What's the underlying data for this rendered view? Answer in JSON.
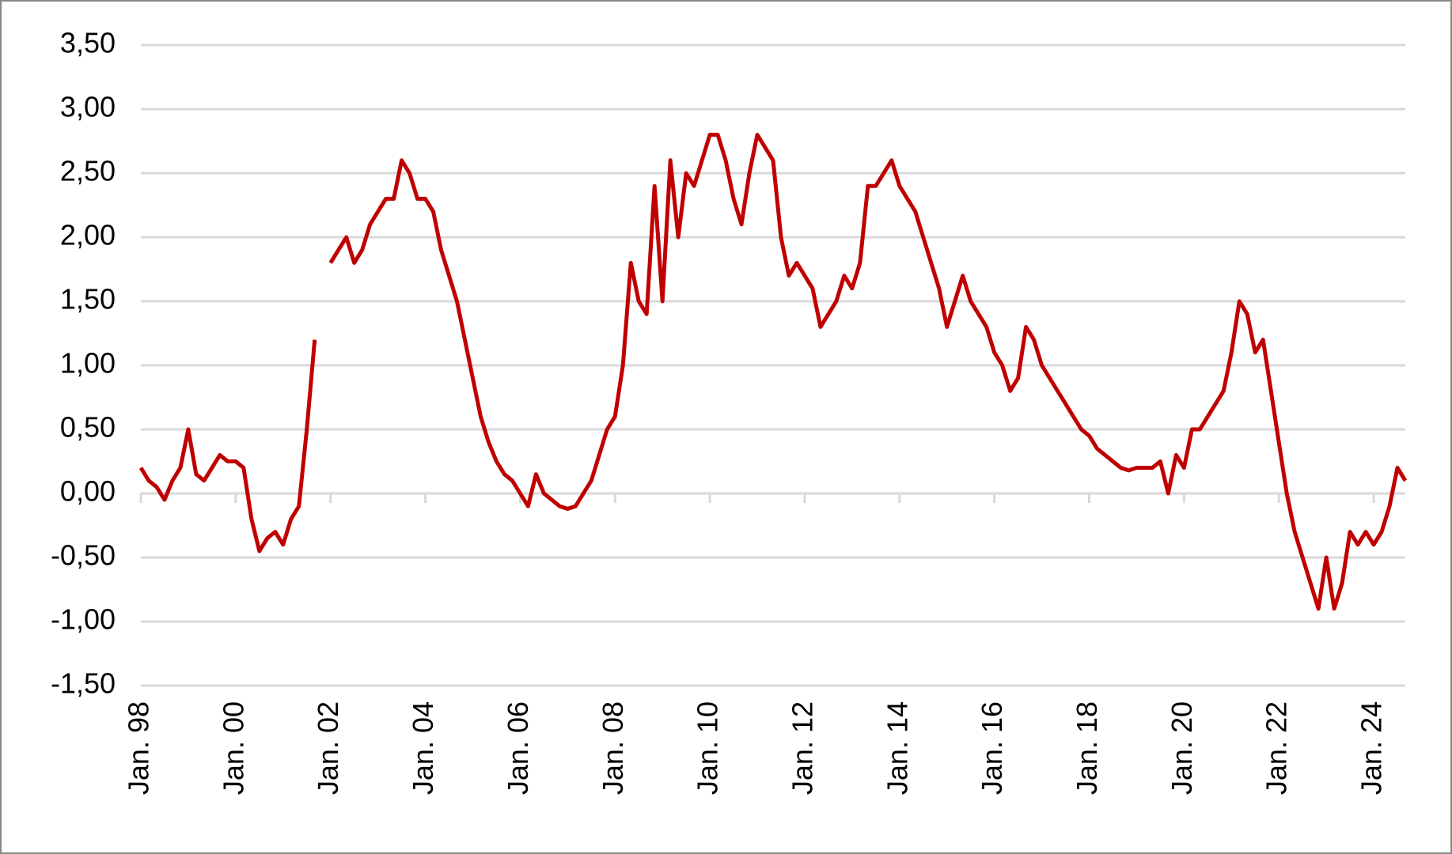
{
  "chart_data": {
    "type": "line",
    "x": [
      "1998-01",
      "1998-03",
      "1998-05",
      "1998-07",
      "1998-09",
      "1998-11",
      "1999-01",
      "1999-03",
      "1999-05",
      "1999-07",
      "1999-09",
      "1999-11",
      "2000-01",
      "2000-03",
      "2000-05",
      "2000-07",
      "2000-09",
      "2000-11",
      "2001-01",
      "2001-03",
      "2001-05",
      "2001-07",
      "2001-09",
      "2001-11",
      "2002-01",
      "2002-03",
      "2002-05",
      "2002-07",
      "2002-09",
      "2002-11",
      "2003-01",
      "2003-03",
      "2003-05",
      "2003-07",
      "2003-09",
      "2003-11",
      "2004-01",
      "2004-03",
      "2004-05",
      "2004-07",
      "2004-09",
      "2004-11",
      "2005-01",
      "2005-03",
      "2005-05",
      "2005-07",
      "2005-09",
      "2005-11",
      "2006-01",
      "2006-03",
      "2006-05",
      "2006-07",
      "2006-09",
      "2006-11",
      "2007-01",
      "2007-03",
      "2007-05",
      "2007-07",
      "2007-09",
      "2007-11",
      "2008-01",
      "2008-03",
      "2008-05",
      "2008-07",
      "2008-09",
      "2008-11",
      "2009-01",
      "2009-03",
      "2009-05",
      "2009-07",
      "2009-09",
      "2009-11",
      "2010-01",
      "2010-03",
      "2010-05",
      "2010-07",
      "2010-09",
      "2010-11",
      "2011-01",
      "2011-03",
      "2011-05",
      "2011-07",
      "2011-09",
      "2011-11",
      "2012-01",
      "2012-03",
      "2012-05",
      "2012-07",
      "2012-09",
      "2012-11",
      "2013-01",
      "2013-03",
      "2013-05",
      "2013-07",
      "2013-09",
      "2013-11",
      "2014-01",
      "2014-03",
      "2014-05",
      "2014-07",
      "2014-09",
      "2014-11",
      "2015-01",
      "2015-03",
      "2015-05",
      "2015-07",
      "2015-09",
      "2015-11",
      "2016-01",
      "2016-03",
      "2016-05",
      "2016-07",
      "2016-09",
      "2016-11",
      "2017-01",
      "2017-03",
      "2017-05",
      "2017-07",
      "2017-09",
      "2017-11",
      "2018-01",
      "2018-03",
      "2018-05",
      "2018-07",
      "2018-09",
      "2018-11",
      "2019-01",
      "2019-03",
      "2019-05",
      "2019-07",
      "2019-09",
      "2019-11",
      "2020-01",
      "2020-03",
      "2020-05",
      "2020-07",
      "2020-09",
      "2020-11",
      "2021-01",
      "2021-03",
      "2021-05",
      "2021-07",
      "2021-09",
      "2021-11",
      "2022-01",
      "2022-03",
      "2022-05",
      "2022-07",
      "2022-09",
      "2022-11",
      "2023-01",
      "2023-03",
      "2023-05",
      "2023-07",
      "2023-09",
      "2023-11",
      "2024-01",
      "2024-03",
      "2024-05",
      "2024-07",
      "2024-09"
    ],
    "series": [
      {
        "color": "#c00000",
        "values": [
          0.2,
          0.1,
          0.05,
          -0.05,
          0.1,
          0.2,
          0.5,
          0.15,
          0.1,
          0.2,
          0.3,
          0.25,
          0.25,
          0.2,
          -0.2,
          -0.45,
          -0.35,
          -0.3,
          -0.4,
          -0.2,
          -0.1,
          0.5,
          1.2,
          null,
          1.8,
          1.9,
          2.0,
          1.8,
          1.9,
          2.1,
          2.2,
          2.3,
          2.3,
          2.6,
          2.5,
          2.3,
          2.3,
          2.2,
          1.9,
          1.7,
          1.5,
          1.2,
          0.9,
          0.6,
          0.4,
          0.25,
          0.15,
          0.1,
          0.0,
          -0.1,
          0.15,
          0.0,
          -0.05,
          -0.1,
          -0.12,
          -0.1,
          0.0,
          0.1,
          0.3,
          0.5,
          0.6,
          1.0,
          1.8,
          1.5,
          1.4,
          2.4,
          1.5,
          2.6,
          2.0,
          2.5,
          2.4,
          2.6,
          2.8,
          2.8,
          2.6,
          2.3,
          2.1,
          2.5,
          2.8,
          2.7,
          2.6,
          2.0,
          1.7,
          1.8,
          1.7,
          1.6,
          1.3,
          1.4,
          1.5,
          1.7,
          1.6,
          1.8,
          2.4,
          2.4,
          2.5,
          2.6,
          2.4,
          2.3,
          2.2,
          2.0,
          1.8,
          1.6,
          1.3,
          1.5,
          1.7,
          1.5,
          1.4,
          1.3,
          1.1,
          1.0,
          0.8,
          0.9,
          1.3,
          1.2,
          1.0,
          0.9,
          0.8,
          0.7,
          0.6,
          0.5,
          0.45,
          0.35,
          0.3,
          0.25,
          0.2,
          0.18,
          0.2,
          0.2,
          0.2,
          0.25,
          0.0,
          0.3,
          0.2,
          0.5,
          0.5,
          0.6,
          0.7,
          0.8,
          1.1,
          1.5,
          1.4,
          1.1,
          1.2,
          0.8,
          0.4,
          0.0,
          -0.3,
          -0.5,
          -0.7,
          -0.9,
          -0.5,
          -0.9,
          -0.7,
          -0.3,
          -0.4,
          -0.3,
          -0.4,
          -0.3,
          -0.1,
          0.2,
          0.1
        ]
      }
    ],
    "xlim": [
      "1998-01",
      "2024-09"
    ],
    "xticks": [
      {
        "value": "1998-01",
        "label": "Jan. 98"
      },
      {
        "value": "2000-01",
        "label": "Jan. 00"
      },
      {
        "value": "2002-01",
        "label": "Jan. 02"
      },
      {
        "value": "2004-01",
        "label": "Jan. 04"
      },
      {
        "value": "2006-01",
        "label": "Jan. 06"
      },
      {
        "value": "2008-01",
        "label": "Jan. 08"
      },
      {
        "value": "2010-01",
        "label": "Jan. 10"
      },
      {
        "value": "2012-01",
        "label": "Jan. 12"
      },
      {
        "value": "2014-01",
        "label": "Jan. 14"
      },
      {
        "value": "2016-01",
        "label": "Jan. 16"
      },
      {
        "value": "2018-01",
        "label": "Jan. 18"
      },
      {
        "value": "2020-01",
        "label": "Jan. 20"
      },
      {
        "value": "2022-01",
        "label": "Jan. 22"
      },
      {
        "value": "2024-01",
        "label": "Jan. 24"
      }
    ],
    "ylim": [
      -1.5,
      3.5
    ],
    "yticks": [
      {
        "value": -1.5,
        "label": "-1,50"
      },
      {
        "value": -1,
        "label": "-1,00"
      },
      {
        "value": -0.5,
        "label": "-0,50"
      },
      {
        "value": 0,
        "label": "0,00"
      },
      {
        "value": 0.5,
        "label": "0,50"
      },
      {
        "value": 1,
        "label": "1,00"
      },
      {
        "value": 1.5,
        "label": "1,50"
      },
      {
        "value": 2,
        "label": "2,00"
      },
      {
        "value": 2.5,
        "label": "2,50"
      },
      {
        "value": 3,
        "label": "3,00"
      },
      {
        "value": 3.5,
        "label": "3,50"
      }
    ],
    "grid": true
  }
}
